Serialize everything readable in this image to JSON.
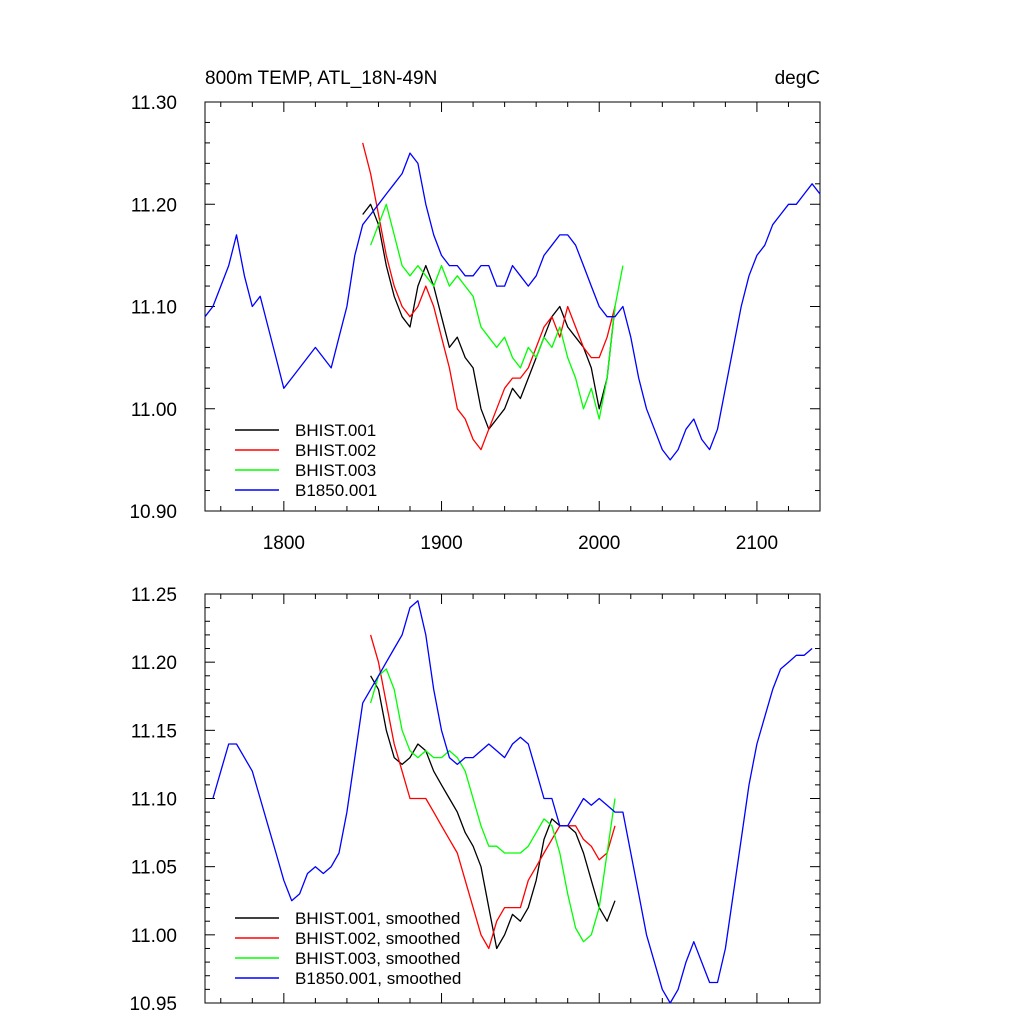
{
  "chart_data": [
    {
      "type": "line",
      "title": "800m TEMP, ATL_18N-49N",
      "units": "degC",
      "xlim": [
        1750,
        2140
      ],
      "ylim": [
        10.9,
        11.3
      ],
      "x_ticks": [
        1800,
        1900,
        2000,
        2100
      ],
      "x_tick_labels": [
        "1800",
        "1900",
        "2000",
        "2100"
      ],
      "y_ticks": [
        10.9,
        11.0,
        11.1,
        11.2,
        11.3
      ],
      "y_tick_labels": [
        "10.90",
        "11.00",
        "11.10",
        "11.20",
        "11.30"
      ],
      "legend_position": "bottom-left",
      "series": [
        {
          "name": "BHIST.001",
          "color": "#000000",
          "x": [
            1850,
            1855,
            1860,
            1865,
            1870,
            1875,
            1880,
            1885,
            1890,
            1895,
            1900,
            1905,
            1910,
            1915,
            1920,
            1925,
            1930,
            1935,
            1940,
            1945,
            1950,
            1955,
            1960,
            1965,
            1970,
            1975,
            1980,
            1985,
            1990,
            1995,
            2000,
            2005,
            2010
          ],
          "y": [
            11.19,
            11.2,
            11.18,
            11.14,
            11.11,
            11.09,
            11.08,
            11.12,
            11.14,
            11.12,
            11.09,
            11.06,
            11.07,
            11.05,
            11.04,
            11.0,
            10.98,
            10.99,
            11.0,
            11.02,
            11.01,
            11.03,
            11.05,
            11.07,
            11.09,
            11.1,
            11.08,
            11.07,
            11.06,
            11.04,
            11.0,
            11.03,
            11.1
          ]
        },
        {
          "name": "BHIST.002",
          "color": "#ff0000",
          "x": [
            1850,
            1855,
            1860,
            1865,
            1870,
            1875,
            1880,
            1885,
            1890,
            1895,
            1900,
            1905,
            1910,
            1915,
            1920,
            1925,
            1930,
            1935,
            1940,
            1945,
            1950,
            1955,
            1960,
            1965,
            1970,
            1975,
            1980,
            1985,
            1990,
            1995,
            2000,
            2005,
            2010
          ],
          "y": [
            11.26,
            11.23,
            11.19,
            11.15,
            11.12,
            11.1,
            11.09,
            11.1,
            11.12,
            11.1,
            11.07,
            11.04,
            11.0,
            10.99,
            10.97,
            10.96,
            10.98,
            11.0,
            11.02,
            11.03,
            11.03,
            11.04,
            11.06,
            11.08,
            11.09,
            11.07,
            11.1,
            11.08,
            11.06,
            11.05,
            11.05,
            11.07,
            11.1
          ]
        },
        {
          "name": "BHIST.003",
          "color": "#00ff00",
          "x": [
            1855,
            1860,
            1865,
            1870,
            1875,
            1880,
            1885,
            1890,
            1895,
            1900,
            1905,
            1910,
            1915,
            1920,
            1925,
            1930,
            1935,
            1940,
            1945,
            1950,
            1955,
            1960,
            1965,
            1970,
            1975,
            1980,
            1985,
            1990,
            1995,
            2000,
            2005,
            2010,
            2015
          ],
          "y": [
            11.16,
            11.18,
            11.2,
            11.17,
            11.14,
            11.13,
            11.14,
            11.13,
            11.12,
            11.14,
            11.12,
            11.13,
            11.12,
            11.11,
            11.08,
            11.07,
            11.06,
            11.07,
            11.05,
            11.04,
            11.06,
            11.05,
            11.07,
            11.06,
            11.08,
            11.05,
            11.03,
            11.0,
            11.02,
            10.99,
            11.03,
            11.1,
            11.14
          ]
        },
        {
          "name": "B1850.001",
          "color": "#0000ff",
          "x": [
            1750,
            1755,
            1760,
            1765,
            1770,
            1775,
            1780,
            1785,
            1790,
            1795,
            1800,
            1805,
            1810,
            1815,
            1820,
            1825,
            1830,
            1835,
            1840,
            1845,
            1850,
            1855,
            1860,
            1865,
            1870,
            1875,
            1880,
            1885,
            1890,
            1895,
            1900,
            1905,
            1910,
            1915,
            1920,
            1925,
            1930,
            1935,
            1940,
            1945,
            1950,
            1955,
            1960,
            1965,
            1970,
            1975,
            1980,
            1985,
            1990,
            1995,
            2000,
            2005,
            2010,
            2015,
            2020,
            2025,
            2030,
            2035,
            2040,
            2045,
            2050,
            2055,
            2060,
            2065,
            2070,
            2075,
            2080,
            2085,
            2090,
            2095,
            2100,
            2105,
            2110,
            2115,
            2120,
            2125,
            2130,
            2135,
            2140
          ],
          "y": [
            11.09,
            11.1,
            11.12,
            11.14,
            11.17,
            11.13,
            11.1,
            11.11,
            11.08,
            11.05,
            11.02,
            11.03,
            11.04,
            11.05,
            11.06,
            11.05,
            11.04,
            11.07,
            11.1,
            11.15,
            11.18,
            11.19,
            11.2,
            11.21,
            11.22,
            11.23,
            11.25,
            11.24,
            11.2,
            11.17,
            11.15,
            11.14,
            11.14,
            11.13,
            11.13,
            11.14,
            11.14,
            11.12,
            11.12,
            11.14,
            11.13,
            11.12,
            11.13,
            11.15,
            11.16,
            11.17,
            11.17,
            11.16,
            11.14,
            11.12,
            11.1,
            11.09,
            11.09,
            11.1,
            11.07,
            11.03,
            11.0,
            10.98,
            10.96,
            10.95,
            10.96,
            10.98,
            10.99,
            10.97,
            10.96,
            10.98,
            11.02,
            11.06,
            11.1,
            11.13,
            11.15,
            11.16,
            11.18,
            11.19,
            11.2,
            11.2,
            11.21,
            11.22,
            11.21
          ]
        }
      ]
    },
    {
      "type": "line",
      "xlim": [
        1750,
        2140
      ],
      "ylim": [
        10.95,
        11.25
      ],
      "x_ticks": [
        1800,
        1900,
        2000,
        2100
      ],
      "y_ticks": [
        10.95,
        11.0,
        11.05,
        11.1,
        11.15,
        11.2,
        11.25
      ],
      "y_tick_labels": [
        "10.95",
        "11.00",
        "11.05",
        "11.10",
        "11.15",
        "11.20",
        "11.25"
      ],
      "legend_position": "bottom-left",
      "series": [
        {
          "name": "BHIST.001, smoothed",
          "color": "#000000",
          "x": [
            1855,
            1860,
            1865,
            1870,
            1875,
            1880,
            1885,
            1890,
            1895,
            1900,
            1905,
            1910,
            1915,
            1920,
            1925,
            1930,
            1935,
            1940,
            1945,
            1950,
            1955,
            1960,
            1965,
            1970,
            1975,
            1980,
            1985,
            1990,
            1995,
            2000,
            2005,
            2010
          ],
          "y": [
            11.19,
            11.18,
            11.15,
            11.13,
            11.125,
            11.13,
            11.14,
            11.135,
            11.12,
            11.11,
            11.1,
            11.09,
            11.075,
            11.065,
            11.05,
            11.02,
            10.99,
            11.0,
            11.015,
            11.01,
            11.02,
            11.04,
            11.07,
            11.085,
            11.08,
            11.08,
            11.075,
            11.06,
            11.04,
            11.02,
            11.01,
            11.025
          ]
        },
        {
          "name": "BHIST.002, smoothed",
          "color": "#ff0000",
          "x": [
            1855,
            1860,
            1865,
            1870,
            1875,
            1880,
            1885,
            1890,
            1895,
            1900,
            1905,
            1910,
            1915,
            1920,
            1925,
            1930,
            1935,
            1940,
            1945,
            1950,
            1955,
            1960,
            1965,
            1970,
            1975,
            1980,
            1985,
            1990,
            1995,
            2000,
            2005,
            2010
          ],
          "y": [
            11.22,
            11.2,
            11.17,
            11.14,
            11.12,
            11.1,
            11.1,
            11.1,
            11.09,
            11.08,
            11.07,
            11.06,
            11.04,
            11.02,
            11.0,
            10.99,
            11.01,
            11.02,
            11.02,
            11.02,
            11.04,
            11.05,
            11.06,
            11.07,
            11.08,
            11.08,
            11.08,
            11.07,
            11.065,
            11.055,
            11.06,
            11.08
          ]
        },
        {
          "name": "BHIST.003, smoothed",
          "color": "#00ff00",
          "x": [
            1855,
            1860,
            1865,
            1870,
            1875,
            1880,
            1885,
            1890,
            1895,
            1900,
            1905,
            1910,
            1915,
            1920,
            1925,
            1930,
            1935,
            1940,
            1945,
            1950,
            1955,
            1960,
            1965,
            1970,
            1975,
            1980,
            1985,
            1990,
            1995,
            2000,
            2005,
            2010
          ],
          "y": [
            11.17,
            11.19,
            11.195,
            11.18,
            11.15,
            11.135,
            11.13,
            11.135,
            11.13,
            11.13,
            11.135,
            11.13,
            11.12,
            11.1,
            11.08,
            11.065,
            11.065,
            11.06,
            11.06,
            11.06,
            11.065,
            11.075,
            11.085,
            11.08,
            11.06,
            11.03,
            11.005,
            10.995,
            11.0,
            11.02,
            11.06,
            11.1
          ]
        },
        {
          "name": "B1850.001, smoothed",
          "color": "#0000ff",
          "x": [
            1755,
            1760,
            1765,
            1770,
            1775,
            1780,
            1785,
            1790,
            1795,
            1800,
            1805,
            1810,
            1815,
            1820,
            1825,
            1830,
            1835,
            1840,
            1845,
            1850,
            1855,
            1860,
            1865,
            1870,
            1875,
            1880,
            1885,
            1890,
            1895,
            1900,
            1905,
            1910,
            1915,
            1920,
            1925,
            1930,
            1935,
            1940,
            1945,
            1950,
            1955,
            1960,
            1965,
            1970,
            1975,
            1980,
            1985,
            1990,
            1995,
            2000,
            2005,
            2010,
            2015,
            2020,
            2025,
            2030,
            2035,
            2040,
            2045,
            2050,
            2055,
            2060,
            2065,
            2070,
            2075,
            2080,
            2085,
            2090,
            2095,
            2100,
            2105,
            2110,
            2115,
            2120,
            2125,
            2130,
            2135
          ],
          "y": [
            11.1,
            11.12,
            11.14,
            11.14,
            11.13,
            11.12,
            11.1,
            11.08,
            11.06,
            11.04,
            11.025,
            11.03,
            11.045,
            11.05,
            11.045,
            11.05,
            11.06,
            11.09,
            11.13,
            11.17,
            11.18,
            11.19,
            11.2,
            11.21,
            11.22,
            11.24,
            11.245,
            11.22,
            11.18,
            11.15,
            11.13,
            11.125,
            11.13,
            11.13,
            11.135,
            11.14,
            11.135,
            11.13,
            11.14,
            11.145,
            11.14,
            11.12,
            11.1,
            11.1,
            11.08,
            11.08,
            11.09,
            11.1,
            11.095,
            11.1,
            11.095,
            11.09,
            11.09,
            11.06,
            11.03,
            11.0,
            10.98,
            10.96,
            10.95,
            10.96,
            10.98,
            10.995,
            10.98,
            10.965,
            10.965,
            10.99,
            11.03,
            11.07,
            11.11,
            11.14,
            11.16,
            11.18,
            11.195,
            11.2,
            11.205,
            11.205,
            11.21
          ]
        }
      ]
    }
  ]
}
